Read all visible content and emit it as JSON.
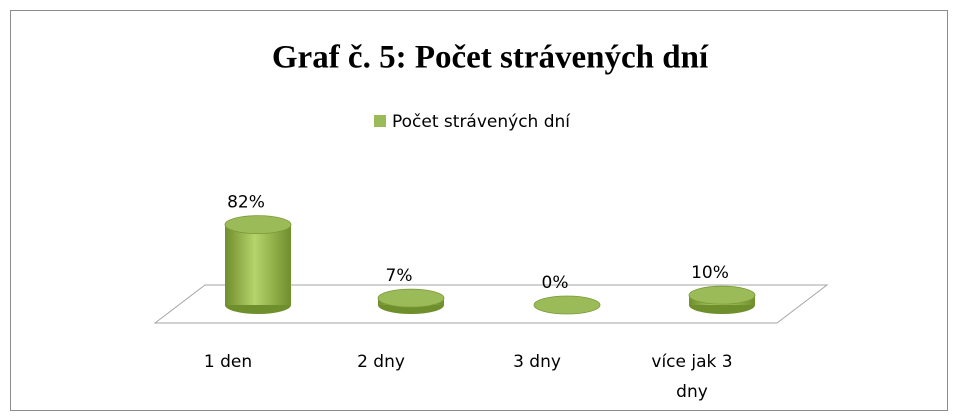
{
  "chart_data": {
    "type": "bar3d",
    "title": "Graf č. 5: Počet strávených dní",
    "categories": [
      "1 den",
      "2 dny",
      "3 dny",
      "více jak 3 dny"
    ],
    "series": [
      {
        "name": "Počet strávených dní",
        "color": "#9bbb59",
        "values": [
          82,
          7,
          0,
          10
        ],
        "value_labels": [
          "82%",
          "7%",
          "0%",
          "10%"
        ]
      }
    ],
    "legend": "top"
  }
}
